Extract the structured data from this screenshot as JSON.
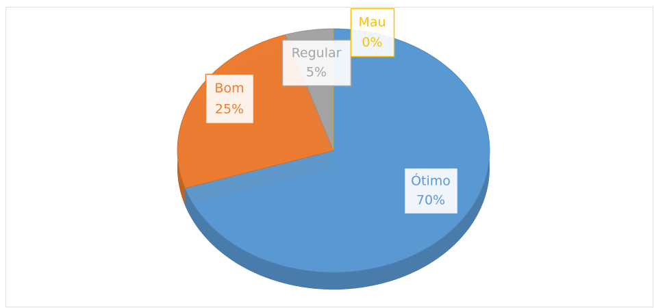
{
  "chart_data": {
    "type": "pie",
    "categories": [
      "Ótimo",
      "Bom",
      "Regular",
      "Mau"
    ],
    "values": [
      70,
      25,
      5,
      0
    ],
    "value_labels": [
      "70%",
      "25%",
      "5%",
      "0%"
    ],
    "colors": [
      "#5b9bd5",
      "#ed7d31",
      "#a5a5a5",
      "#ffc000"
    ]
  }
}
